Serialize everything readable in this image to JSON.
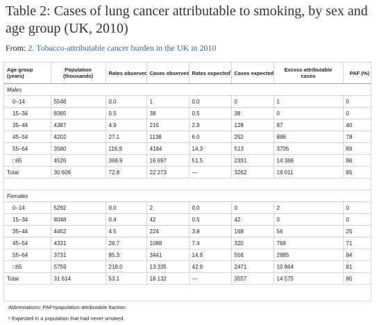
{
  "title": "Table 2: Cases of lung cancer attributable to smoking, by sex and age group (UK, 2010)",
  "from_prefix": "From: ",
  "from_link": "2. Tobacco-attributable cancer burden in the UK in 2010",
  "headers": {
    "age": "Age group (years)",
    "population": "Population (thousands)",
    "rates_obs": "Rates observed",
    "cases_obs": "Cases observed",
    "rates_exp": "Rates expected",
    "cases_exp": "Cases expected",
    "excess": "Excess attributable cases",
    "paf": "PAF (%)",
    "note_mark": "a"
  },
  "males": {
    "label": "Males",
    "rows": [
      [
        "0–14",
        "5548",
        "0.0",
        "1",
        "0.0",
        "0",
        "1",
        "0"
      ],
      [
        "15–34",
        "8365",
        "0.5",
        "38",
        "0.5",
        "38",
        "0",
        "0"
      ],
      [
        "35–44",
        "4387",
        "4.9",
        "215",
        "2.9",
        "128",
        "87",
        "40"
      ],
      [
        "45–54",
        "4202",
        "27.1",
        "1138",
        "6.0",
        "252",
        "886",
        "78"
      ],
      [
        "55–64",
        "3580",
        "116.9",
        "4184",
        "14.3",
        "513",
        "3705",
        "89"
      ],
      [
        "□65",
        "4526",
        "368.9",
        "16 697",
        "51.5",
        "2331",
        "14 366",
        "86"
      ],
      [
        "Total",
        "30 609",
        "72.8",
        "22 273",
        "—",
        "3262",
        "19 011",
        "85"
      ]
    ]
  },
  "females": {
    "label": "Females",
    "rows": [
      [
        "0–14",
        "5292",
        "0.0",
        "2",
        "0.0",
        "0",
        "2",
        "0"
      ],
      [
        "15–34",
        "8048",
        "0.4",
        "42",
        "0.5",
        "42",
        "0",
        "0"
      ],
      [
        "35–44",
        "4452",
        "4.5",
        "224",
        "3.8",
        "168",
        "56",
        "25"
      ],
      [
        "45–54",
        "4331",
        "26.7",
        "1088",
        "7.4",
        "320",
        "768",
        "71"
      ],
      [
        "55–64",
        "3731",
        "85.3",
        "3441",
        "14.9",
        "556",
        "2885",
        "84"
      ],
      [
        "□65",
        "5759",
        "218.0",
        "13 335",
        "42.9",
        "2471",
        "10 864",
        "81"
      ],
      [
        "Total",
        "31 614",
        "53.1",
        "18 132",
        "—",
        "3557",
        "14 575",
        "80"
      ]
    ]
  },
  "footnotes": {
    "abbrev": "Abbreviations: PAF=population-attributable fraction.",
    "a": "ᵃ Expected in a population that had never smoked."
  },
  "colors": {
    "link": "#2a66b0",
    "border": "#d4d4d4"
  }
}
